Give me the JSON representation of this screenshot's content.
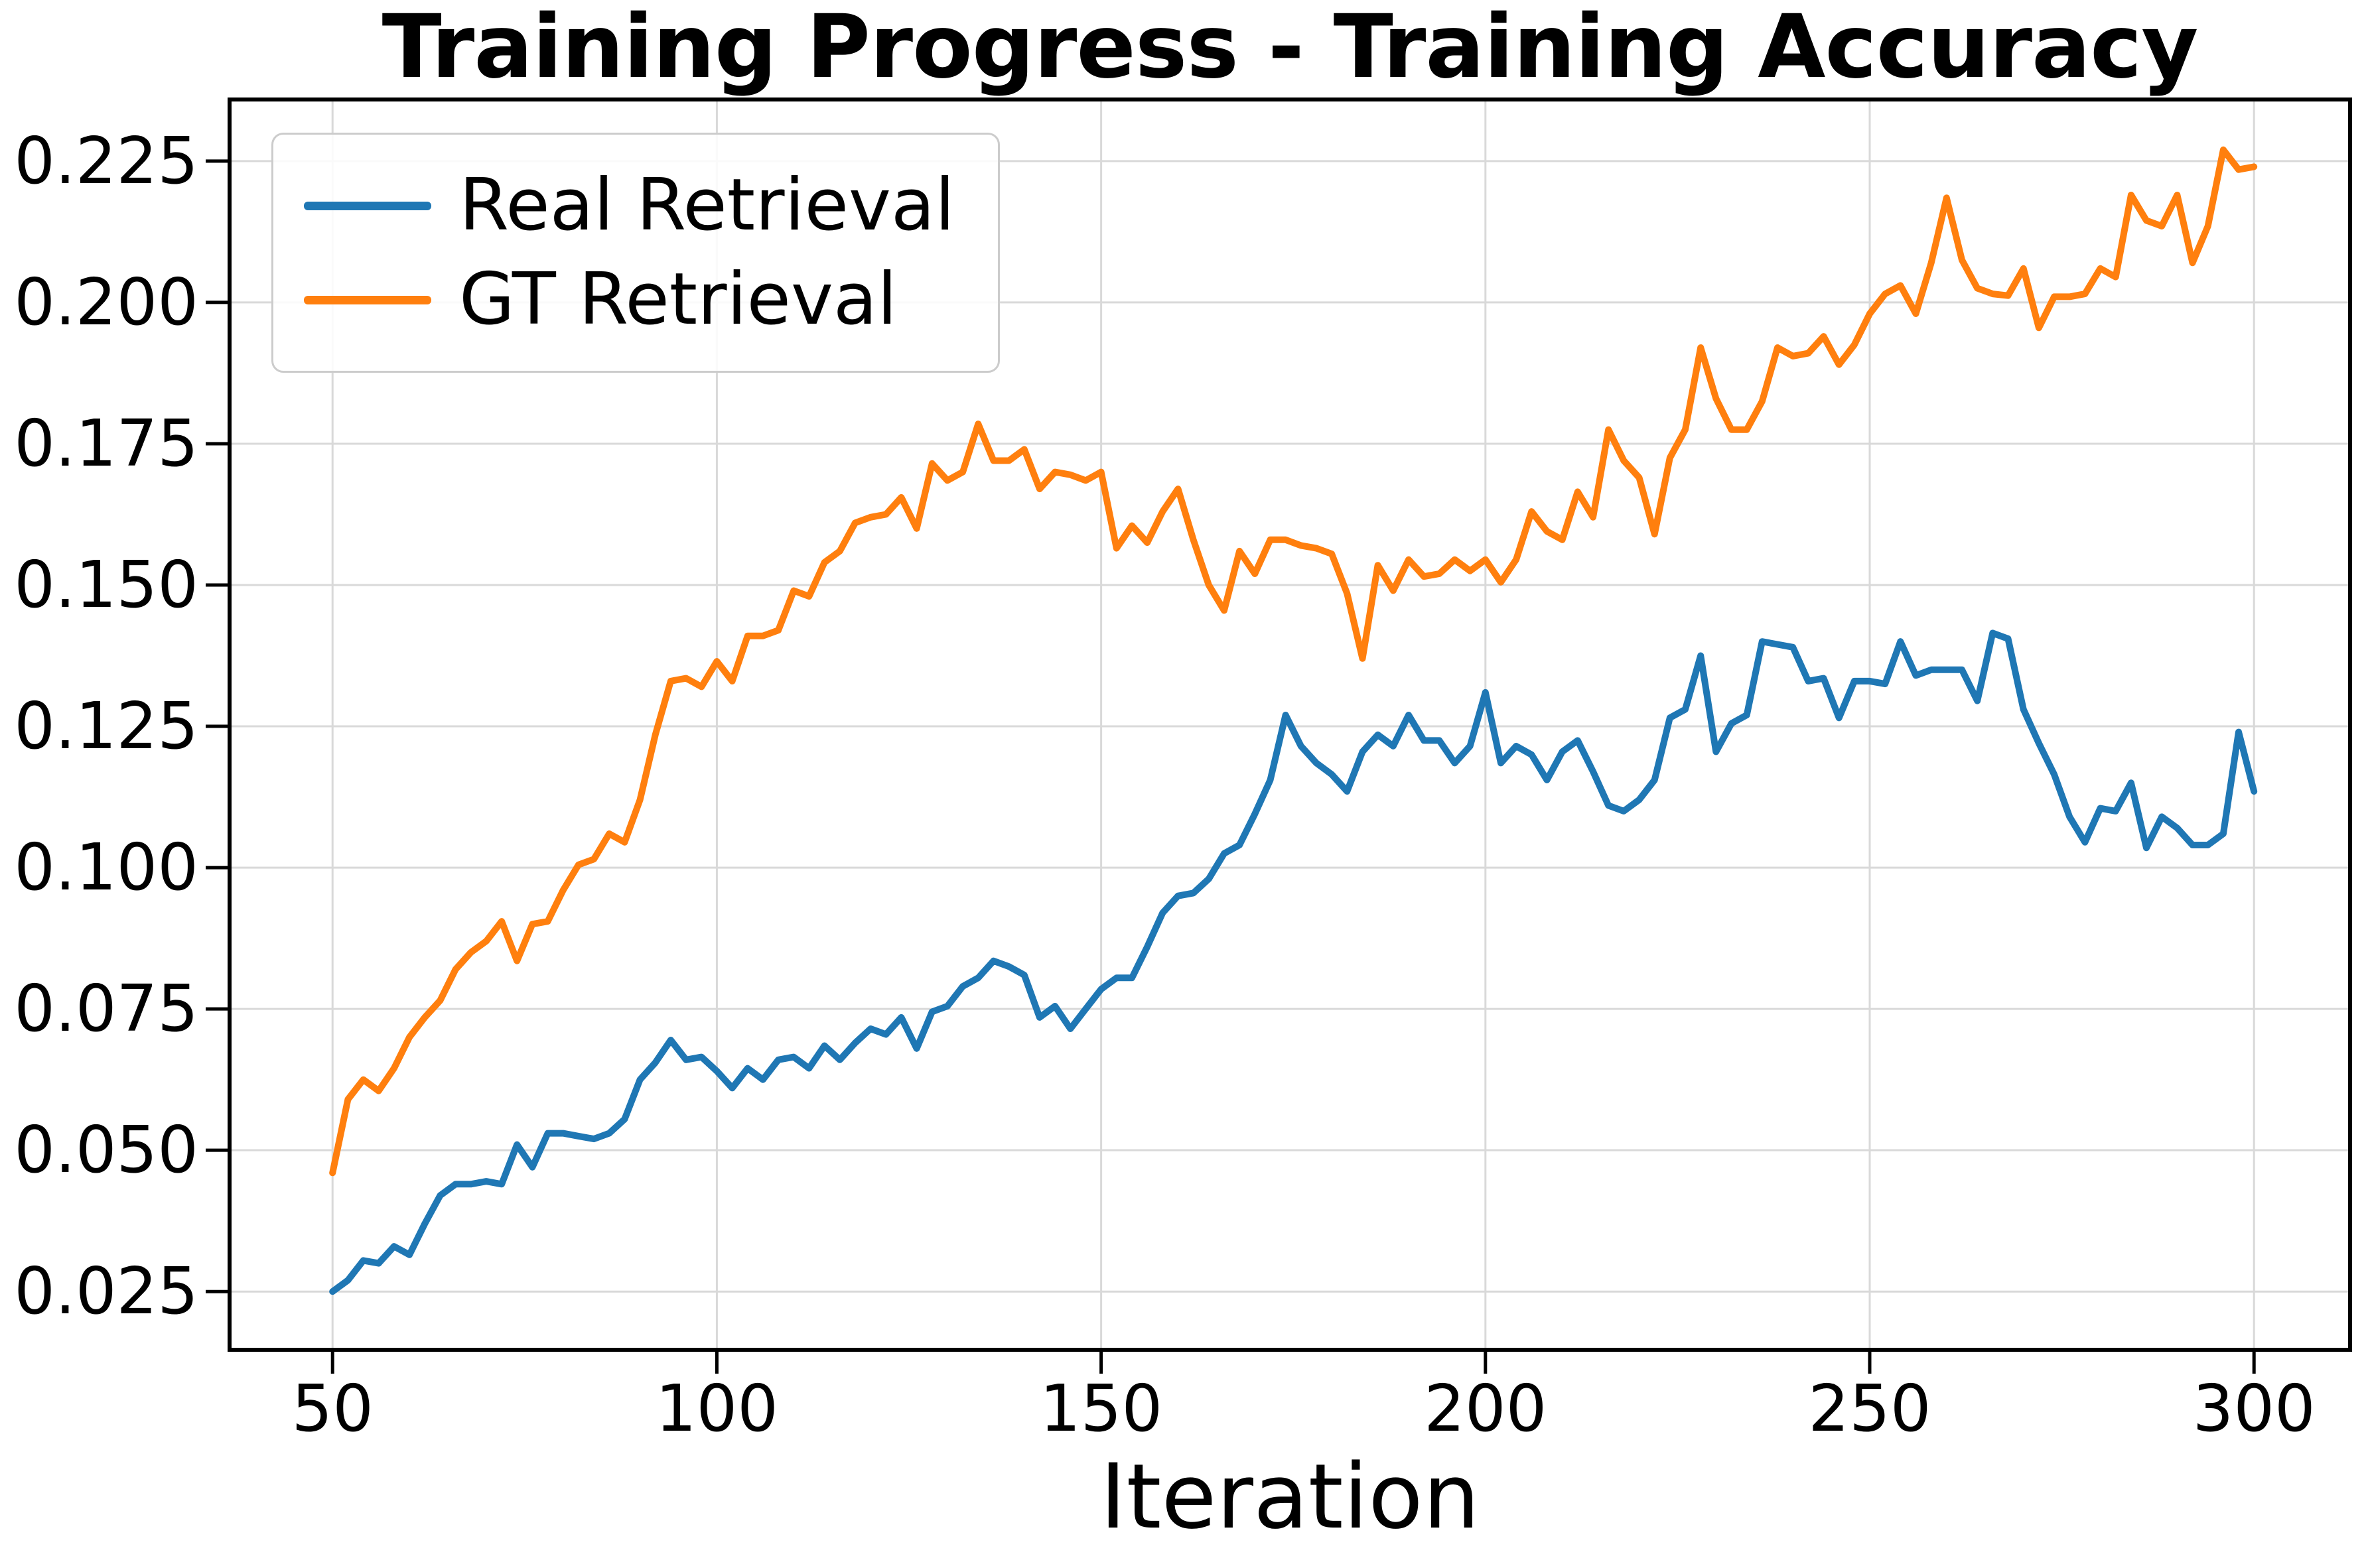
{
  "chart_data": {
    "type": "line",
    "title": "Training Progress - Training Accuracy",
    "xlabel": "Iteration",
    "ylabel": "",
    "grid": true,
    "legend_position": "upper left",
    "background_color": "#ffffff",
    "grid_color": "#d9d9d9",
    "axis_color": "#000000",
    "text_color": "#000000",
    "xlim": [
      36.6,
      312.5
    ],
    "ylim": [
      0.0147,
      0.2359
    ],
    "x_ticks": [
      50,
      100,
      150,
      200,
      250,
      300
    ],
    "x_tick_labels": [
      "50",
      "100",
      "150",
      "200",
      "250",
      "300"
    ],
    "y_ticks": [
      0.025,
      0.05,
      0.075,
      0.1,
      0.125,
      0.15,
      0.175,
      0.2,
      0.225
    ],
    "y_tick_labels": [
      "0.025",
      "0.050",
      "0.075",
      "0.100",
      "0.125",
      "0.150",
      "0.175",
      "0.200",
      "0.225"
    ],
    "x": [
      50,
      52,
      54,
      56,
      58,
      60,
      62,
      64,
      66,
      68,
      70,
      72,
      74,
      76,
      78,
      80,
      82,
      84,
      86,
      88,
      90,
      92,
      94,
      96,
      98,
      100,
      102,
      104,
      106,
      108,
      110,
      112,
      114,
      116,
      118,
      120,
      122,
      124,
      126,
      128,
      130,
      132,
      134,
      136,
      138,
      140,
      142,
      144,
      146,
      148,
      150,
      152,
      154,
      156,
      158,
      160,
      162,
      164,
      166,
      168,
      170,
      172,
      174,
      176,
      178,
      180,
      182,
      184,
      186,
      188,
      190,
      192,
      194,
      196,
      198,
      200,
      202,
      204,
      206,
      208,
      210,
      212,
      214,
      216,
      218,
      220,
      222,
      224,
      226,
      228,
      230,
      232,
      234,
      236,
      238,
      240,
      242,
      244,
      246,
      248,
      250,
      252,
      254,
      256,
      258,
      260,
      262,
      264,
      266,
      268,
      270,
      272,
      274,
      276,
      278,
      280,
      282,
      284,
      286,
      288,
      290,
      292,
      294,
      296,
      298,
      300
    ],
    "series": [
      {
        "name": "Real Retrieval",
        "color": "#1f77b4",
        "values": [
          0.025,
          0.027,
          0.0305,
          0.03,
          0.033,
          0.0315,
          0.037,
          0.042,
          0.044,
          0.044,
          0.0445,
          0.044,
          0.051,
          0.047,
          0.053,
          0.053,
          0.0525,
          0.052,
          0.053,
          0.0555,
          0.0625,
          0.0655,
          0.0695,
          0.066,
          0.0665,
          0.064,
          0.061,
          0.0645,
          0.0625,
          0.066,
          0.0665,
          0.0645,
          0.0685,
          0.066,
          0.069,
          0.0715,
          0.0705,
          0.0735,
          0.068,
          0.0745,
          0.0755,
          0.079,
          0.0805,
          0.0835,
          0.0825,
          0.081,
          0.0735,
          0.0755,
          0.0715,
          0.075,
          0.0785,
          0.0805,
          0.0805,
          0.086,
          0.092,
          0.095,
          0.0955,
          0.098,
          0.1025,
          0.104,
          0.1095,
          0.1155,
          0.127,
          0.1215,
          0.1185,
          0.1165,
          0.1135,
          0.1205,
          0.1235,
          0.1215,
          0.127,
          0.1225,
          0.1225,
          0.1185,
          0.1215,
          0.131,
          0.1185,
          0.1215,
          0.12,
          0.1155,
          0.1205,
          0.1225,
          0.117,
          0.111,
          0.11,
          0.112,
          0.1155,
          0.1265,
          0.128,
          0.1375,
          0.1205,
          0.1255,
          0.127,
          0.14,
          0.1395,
          0.139,
          0.133,
          0.1335,
          0.1265,
          0.133,
          0.133,
          0.1325,
          0.14,
          0.134,
          0.135,
          0.135,
          0.135,
          0.1295,
          0.1415,
          0.1405,
          0.128,
          0.122,
          0.1165,
          0.109,
          0.1045,
          0.1105,
          0.11,
          0.115,
          0.1035,
          0.109,
          0.107,
          0.104,
          0.104,
          0.106,
          0.124,
          0.1135
        ]
      },
      {
        "name": "GT Retrieval",
        "color": "#ff7f0e",
        "values": [
          0.046,
          0.059,
          0.0625,
          0.0605,
          0.0645,
          0.07,
          0.0735,
          0.0765,
          0.082,
          0.085,
          0.087,
          0.0905,
          0.0835,
          0.09,
          0.0905,
          0.096,
          0.1005,
          0.1015,
          0.106,
          0.1045,
          0.112,
          0.1235,
          0.133,
          0.1335,
          0.132,
          0.1365,
          0.133,
          0.141,
          0.141,
          0.142,
          0.149,
          0.148,
          0.154,
          0.156,
          0.161,
          0.162,
          0.1625,
          0.1655,
          0.16,
          0.1715,
          0.1685,
          0.17,
          0.1785,
          0.172,
          0.172,
          0.174,
          0.167,
          0.17,
          0.1695,
          0.1685,
          0.17,
          0.1565,
          0.1605,
          0.1575,
          0.163,
          0.167,
          0.158,
          0.15,
          0.1455,
          0.156,
          0.152,
          0.158,
          0.158,
          0.157,
          0.1565,
          0.1555,
          0.1485,
          0.137,
          0.1535,
          0.149,
          0.1545,
          0.1515,
          0.152,
          0.1545,
          0.1525,
          0.1545,
          0.1505,
          0.1545,
          0.163,
          0.1595,
          0.158,
          0.1665,
          0.162,
          0.1775,
          0.172,
          0.169,
          0.159,
          0.1725,
          0.1775,
          0.192,
          0.183,
          0.1775,
          0.1775,
          0.1825,
          0.192,
          0.1905,
          0.191,
          0.194,
          0.189,
          0.1925,
          0.198,
          0.2015,
          0.203,
          0.198,
          0.207,
          0.2185,
          0.2075,
          0.2025,
          0.2015,
          0.2012,
          0.206,
          0.1955,
          0.201,
          0.201,
          0.2015,
          0.206,
          0.2045,
          0.219,
          0.2145,
          0.2135,
          0.219,
          0.207,
          0.2135,
          0.227,
          0.2235,
          0.224
        ]
      }
    ]
  }
}
